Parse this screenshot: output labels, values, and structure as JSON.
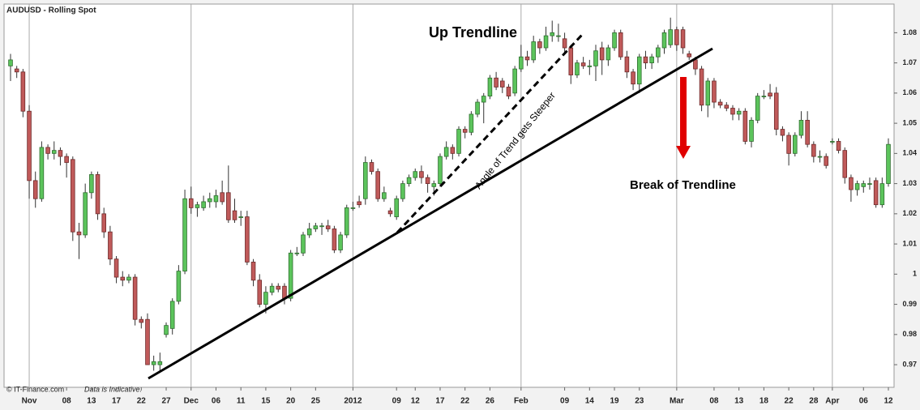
{
  "chart_data": {
    "type": "candlestick",
    "title": "AUDUSD - Rolling Spot",
    "source": "© IT-Finance.com",
    "note": "Data is Indicative.",
    "annotations": [
      "Up Trendline",
      "Angle of Trend gets Steeper",
      "Break of Trendline"
    ],
    "up_color": "#5cc45c",
    "down_color": "#c05a5a",
    "ylim": [
      0.9625,
      1.0895
    ],
    "yticks": [
      0.97,
      0.98,
      0.99,
      1,
      1.01,
      1.02,
      1.03,
      1.04,
      1.05,
      1.06,
      1.07,
      1.08
    ],
    "categories": [
      null,
      null,
      null,
      "Nov",
      null,
      null,
      null,
      null,
      null,
      "08",
      null,
      null,
      null,
      "13",
      null,
      null,
      null,
      "17",
      null,
      null,
      null,
      "22",
      null,
      null,
      null,
      "27",
      null,
      null,
      null,
      "Dec",
      null,
      null,
      null,
      "06",
      null,
      null,
      null,
      "11",
      null,
      null,
      null,
      "15",
      null,
      null,
      null,
      "20",
      null,
      null,
      null,
      "25",
      null,
      null,
      null,
      null,
      null,
      "2012",
      null,
      null,
      null,
      null,
      null,
      null,
      "09",
      null,
      null,
      "12",
      null,
      null,
      null,
      "17",
      null,
      null,
      null,
      "22",
      null,
      null,
      null,
      "26",
      null,
      null,
      null,
      null,
      "Feb",
      null,
      null,
      null,
      null,
      null,
      null,
      "09",
      null,
      null,
      null,
      "14",
      null,
      null,
      null,
      "19",
      null,
      null,
      null,
      "23",
      null,
      null,
      null,
      null,
      null,
      "Mar",
      null,
      null,
      null,
      null,
      null,
      "08",
      null,
      null,
      null,
      "13",
      null,
      null,
      null,
      "18",
      null,
      null,
      null,
      "22",
      null,
      null,
      null,
      "28",
      null,
      null,
      "Apr",
      null,
      null,
      null,
      null,
      "06",
      null,
      null,
      null,
      "12"
    ],
    "open": [
      1.069,
      1.068,
      1.067,
      1.054,
      1.031,
      1.025,
      1.042,
      1.04,
      1.041,
      1.039,
      1.038,
      1.014,
      1.013,
      1.027,
      1.033,
      1.02,
      1.014,
      1.005,
      0.999,
      0.998,
      0.999,
      0.985,
      0.985,
      0.97,
      0.97,
      0.98,
      0.982,
      0.991,
      1.001,
      1.025,
      1.022,
      1.022,
      1.024,
      1.024,
      1.027,
      1.027,
      1.021,
      1.019,
      1.019,
      1.004,
      0.998,
      0.99,
      0.994,
      0.996,
      0.996,
      0.992,
      1.007,
      1.007,
      1.013,
      1.015,
      1.016,
      1.016,
      1.015,
      1.008,
      1.013,
      1.022,
      1.024,
      1.025,
      1.037,
      1.034,
      1.025,
      1.021,
      1.019,
      1.025,
      1.03,
      1.032,
      1.034,
      1.032,
      1.029,
      1.03,
      1.039,
      1.042,
      1.04,
      1.048,
      1.047,
      1.053,
      1.057,
      1.059,
      1.065,
      1.064,
      1.062,
      1.06,
      1.068,
      1.072,
      1.071,
      1.077,
      1.075,
      1.079,
      1.079,
      1.078,
      1.075,
      1.066,
      1.07,
      1.069,
      1.069,
      1.075,
      1.071,
      1.075,
      1.08,
      1.072,
      1.067,
      1.063,
      1.072,
      1.07,
      1.072,
      1.075,
      1.076,
      1.081,
      1.081,
      1.073,
      1.071,
      1.068,
      1.056,
      1.064,
      1.057,
      1.056,
      1.055,
      1.053,
      1.054,
      1.044,
      1.051,
      1.059,
      1.06,
      1.06,
      1.048,
      1.046,
      1.04,
      1.046,
      1.051,
      1.043,
      1.039,
      1.039,
      1.044,
      1.044,
      1.041,
      1.032,
      1.028,
      1.029,
      1.03,
      1.031,
      1.023,
      1.03
    ],
    "high": [
      1.073,
      1.069,
      1.068,
      1.056,
      1.034,
      1.044,
      1.043,
      1.044,
      1.042,
      1.04,
      1.039,
      1.017,
      1.03,
      1.034,
      1.034,
      1.022,
      1.016,
      1.006,
      1.001,
      1.0,
      1.0,
      0.986,
      0.987,
      0.973,
      0.974,
      0.984,
      0.992,
      1.003,
      1.028,
      1.029,
      1.024,
      1.026,
      1.027,
      1.028,
      1.031,
      1.036,
      1.025,
      1.021,
      1.021,
      1.005,
      1.0,
      0.996,
      0.997,
      0.997,
      0.997,
      1.008,
      1.009,
      1.014,
      1.017,
      1.017,
      1.017,
      1.018,
      1.016,
      1.014,
      1.023,
      1.024,
      1.026,
      1.039,
      1.038,
      1.035,
      1.029,
      1.022,
      1.026,
      1.031,
      1.033,
      1.035,
      1.036,
      1.033,
      1.031,
      1.04,
      1.044,
      1.043,
      1.049,
      1.049,
      1.054,
      1.058,
      1.06,
      1.066,
      1.067,
      1.065,
      1.063,
      1.069,
      1.076,
      1.074,
      1.079,
      1.078,
      1.082,
      1.084,
      1.083,
      1.08,
      1.076,
      1.071,
      1.072,
      1.071,
      1.076,
      1.077,
      1.076,
      1.081,
      1.081,
      1.074,
      1.068,
      1.073,
      1.074,
      1.073,
      1.076,
      1.081,
      1.085,
      1.082,
      1.082,
      1.074,
      1.072,
      1.069,
      1.065,
      1.065,
      1.058,
      1.057,
      1.056,
      1.055,
      1.055,
      1.052,
      1.06,
      1.061,
      1.063,
      1.062,
      1.049,
      1.047,
      1.047,
      1.054,
      1.054,
      1.044,
      1.041,
      1.04,
      1.045,
      1.045,
      1.042,
      1.033,
      1.031,
      1.031,
      1.032,
      1.032,
      1.032,
      1.045
    ],
    "low": [
      1.064,
      1.065,
      1.052,
      1.025,
      1.022,
      1.024,
      1.038,
      1.038,
      1.036,
      1.032,
      1.011,
      1.005,
      1.012,
      1.025,
      1.018,
      1.012,
      1.003,
      0.997,
      0.996,
      0.997,
      0.983,
      0.982,
      0.97,
      0.968,
      0.968,
      0.979,
      0.98,
      0.99,
      1.0,
      1.02,
      1.019,
      1.021,
      1.022,
      1.022,
      1.023,
      1.017,
      1.017,
      1.016,
      1.003,
      0.996,
      0.989,
      0.987,
      0.993,
      0.994,
      0.99,
      0.991,
      1.006,
      1.006,
      1.012,
      1.014,
      1.013,
      1.014,
      1.007,
      1.007,
      1.012,
      1.021,
      1.022,
      1.023,
      1.033,
      1.024,
      1.024,
      1.019,
      1.018,
      1.024,
      1.029,
      1.031,
      1.03,
      1.027,
      1.026,
      1.029,
      1.038,
      1.038,
      1.039,
      1.045,
      1.046,
      1.052,
      1.05,
      1.058,
      1.061,
      1.06,
      1.058,
      1.059,
      1.067,
      1.069,
      1.07,
      1.073,
      1.074,
      1.077,
      1.077,
      1.073,
      1.063,
      1.065,
      1.068,
      1.066,
      1.064,
      1.066,
      1.069,
      1.074,
      1.071,
      1.065,
      1.061,
      1.06,
      1.068,
      1.068,
      1.07,
      1.073,
      1.075,
      1.074,
      1.073,
      1.071,
      1.066,
      1.054,
      1.052,
      1.055,
      1.055,
      1.054,
      1.051,
      1.051,
      1.043,
      1.042,
      1.05,
      1.058,
      1.058,
      1.046,
      1.044,
      1.036,
      1.039,
      1.045,
      1.042,
      1.037,
      1.037,
      1.035,
      1.043,
      1.04,
      1.03,
      1.024,
      1.026,
      1.027,
      1.028,
      1.022,
      1.022,
      1.029
    ],
    "close": [
      1.071,
      1.067,
      1.054,
      1.031,
      1.025,
      1.042,
      1.04,
      1.041,
      1.039,
      1.037,
      1.014,
      1.013,
      1.027,
      1.033,
      1.02,
      1.014,
      1.005,
      0.999,
      0.998,
      0.999,
      0.985,
      0.984,
      0.97,
      0.971,
      0.971,
      0.983,
      0.991,
      1.001,
      1.025,
      1.022,
      1.023,
      1.024,
      1.025,
      1.026,
      1.024,
      1.018,
      1.018,
      1.019,
      1.004,
      0.998,
      0.99,
      0.994,
      0.996,
      0.995,
      0.992,
      1.007,
      1.007,
      1.013,
      1.015,
      1.016,
      1.016,
      1.015,
      1.008,
      1.013,
      1.022,
      1.022,
      1.023,
      1.037,
      1.034,
      1.025,
      1.027,
      1.02,
      1.025,
      1.03,
      1.032,
      1.034,
      1.032,
      1.03,
      1.03,
      1.039,
      1.042,
      1.04,
      1.048,
      1.047,
      1.053,
      1.057,
      1.059,
      1.065,
      1.062,
      1.062,
      1.059,
      1.068,
      1.072,
      1.071,
      1.077,
      1.075,
      1.079,
      1.08,
      1.079,
      1.075,
      1.066,
      1.07,
      1.069,
      1.069,
      1.074,
      1.071,
      1.075,
      1.08,
      1.072,
      1.067,
      1.063,
      1.072,
      1.07,
      1.072,
      1.075,
      1.08,
      1.081,
      1.076,
      1.075,
      1.072,
      1.068,
      1.056,
      1.064,
      1.057,
      1.056,
      1.055,
      1.053,
      1.054,
      1.044,
      1.051,
      1.059,
      1.059,
      1.059,
      1.048,
      1.046,
      1.04,
      1.046,
      1.051,
      1.043,
      1.039,
      1.039,
      1.036,
      1.044,
      1.041,
      1.032,
      1.028,
      1.03,
      1.03,
      1.03,
      1.023,
      1.03,
      1.043
    ]
  }
}
